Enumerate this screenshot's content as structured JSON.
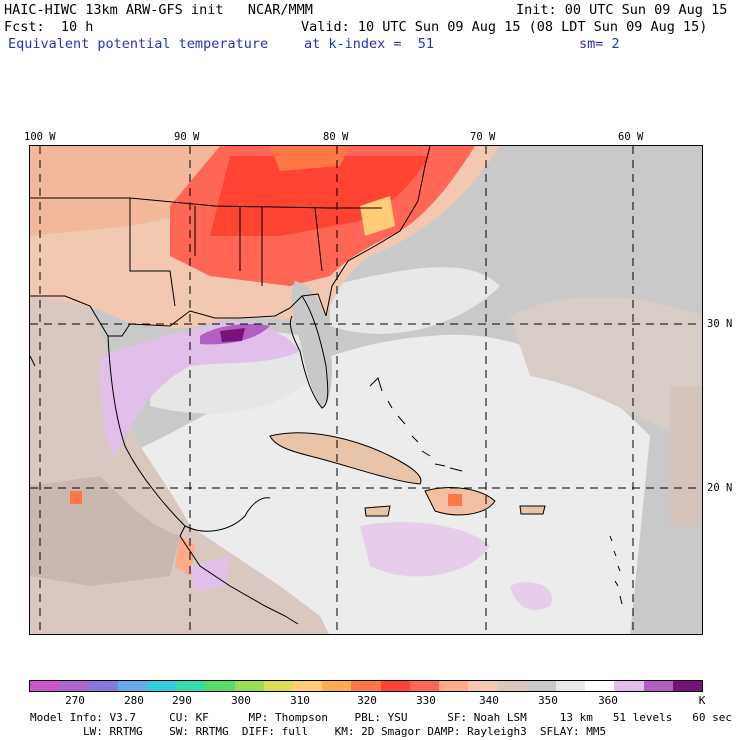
{
  "header": {
    "model_title": "HAIC-HIWC 13km ARW-GFS init",
    "org": "NCAR/MMM",
    "init": "Init: 00 UTC Sun 09 Aug 15",
    "fcst": "Fcst:  10 h",
    "valid": "Valid: 10 UTC Sun 09 Aug 15 (08 LDT Sun 09 Aug 15)",
    "field_name": "Equivalent potential temperature",
    "level": "at k-index =  51",
    "smooth": "sm= 2"
  },
  "axes": {
    "lon_labels": [
      "100 W",
      "90 W",
      "80 W",
      "70 W",
      "60 W"
    ],
    "lat_labels": [
      "30 N",
      "20 N"
    ]
  },
  "colorbar": {
    "colors": [
      "#cc55cc",
      "#aa66cc",
      "#8877dd",
      "#66aaee",
      "#33ccdd",
      "#33ddaa",
      "#55dd66",
      "#99dd55",
      "#dddd55",
      "#ffcc77",
      "#ffaa55",
      "#ff7744",
      "#ff4433",
      "#ff6655",
      "#ffaa88",
      "#f2c8b0",
      "#d8c8c0",
      "#c8c8c8",
      "#e8e8e8",
      "#ffffff",
      "#e0c0e8",
      "#b060c0",
      "#7a107a"
    ],
    "labels": [
      "270",
      "280",
      "290",
      "300",
      "310",
      "320",
      "330",
      "340",
      "350",
      "360"
    ],
    "unit": "K"
  },
  "model_info": {
    "line1": "Model Info: V3.7     CU: KF      MP: Thompson    PBL: YSU      SF: Noah LSM     13 km   51 levels   60 sec",
    "line2": "        LW: RRTMG    SW: RRTMG  DIFF: full    KM: 2D Smagor DAMP: Rayleigh3  SFLAY: MM5"
  }
}
